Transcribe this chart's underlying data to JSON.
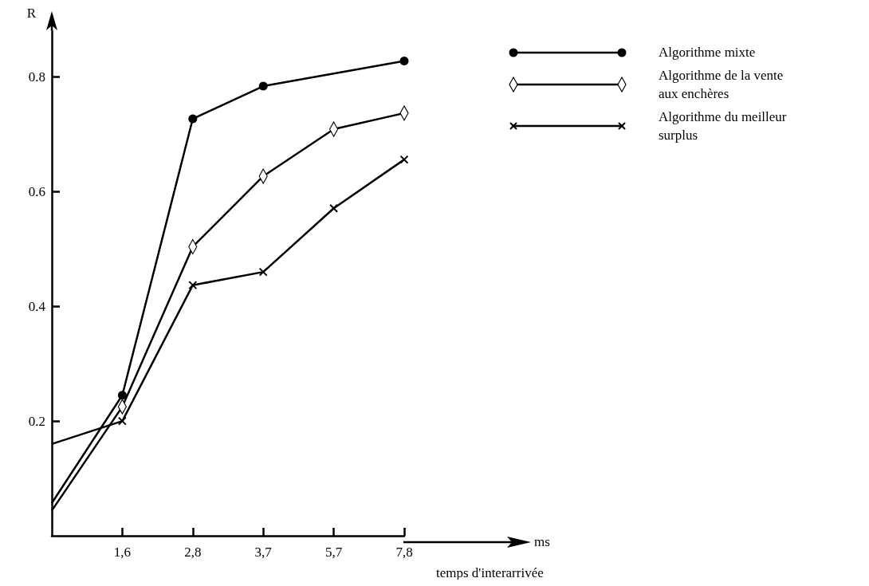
{
  "chart_data": {
    "type": "line",
    "ylabel": "R",
    "xlabel": "temps d'interarrivée",
    "annotations": [
      "ms"
    ],
    "categories": [
      null,
      "1,6",
      "2,8",
      "3,7",
      "5,7",
      "7,8"
    ],
    "ylim": [
      0,
      0.88
    ],
    "yticks": [
      0.2,
      0.4,
      0.6,
      0.8
    ],
    "grid": false,
    "legend": "top right",
    "series": [
      {
        "name": "Algorithme mixte",
        "color": "#000000",
        "marker": "circle",
        "values": [
          0.057,
          0.245,
          0.727,
          0.784,
          null,
          0.828
        ]
      },
      {
        "name": "Algorithme de la vente aux enchères",
        "color": "#000000",
        "marker": "diamond",
        "values": [
          0.044,
          0.225,
          0.504,
          0.627,
          0.709,
          0.737
        ]
      },
      {
        "name": "Algorithme du meilleur surplus",
        "color": "#000000",
        "marker": "cross",
        "values": [
          0.16,
          0.2,
          0.437,
          0.46,
          0.571,
          0.656
        ]
      }
    ]
  }
}
